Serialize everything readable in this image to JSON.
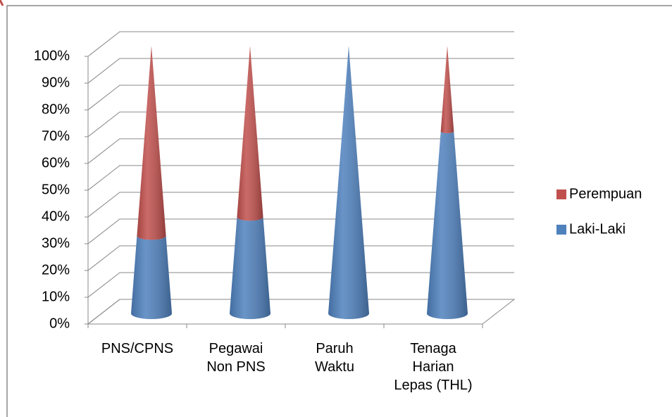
{
  "chart_data": {
    "type": "cone",
    "categories": [
      "PNS/CPNS",
      "Pegawai\nNon PNS",
      "Paruh\nWaktu",
      "Tenaga\nHarian\nLepas (THL)"
    ],
    "series": [
      {
        "name": "Laki-Laki",
        "color": "#4f81bd",
        "values": [
          29,
          36,
          100,
          68
        ]
      },
      {
        "name": "Perempuan",
        "color": "#c0504d",
        "values": [
          71,
          64,
          0,
          32
        ]
      }
    ],
    "ylim": [
      0,
      100
    ],
    "yticks": [
      {
        "value": 0,
        "label": "0%"
      },
      {
        "value": 10,
        "label": "10%"
      },
      {
        "value": 20,
        "label": "20%"
      },
      {
        "value": 30,
        "label": "30%"
      },
      {
        "value": 40,
        "label": "40%"
      },
      {
        "value": 50,
        "label": "50%"
      },
      {
        "value": 60,
        "label": "60%"
      },
      {
        "value": 70,
        "label": "70%"
      },
      {
        "value": 80,
        "label": "80%"
      },
      {
        "value": 90,
        "label": "90%"
      },
      {
        "value": 100,
        "label": "100%"
      }
    ],
    "grid": true,
    "stacked": true,
    "legend": "right"
  }
}
